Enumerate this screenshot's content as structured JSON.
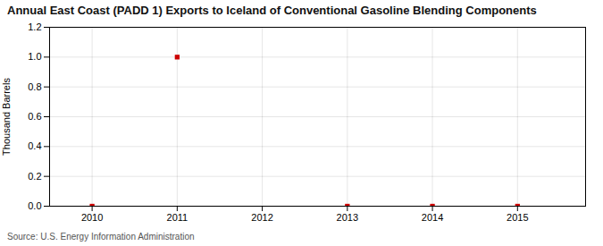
{
  "chart_data": {
    "type": "scatter",
    "title": "Annual East Coast (PADD 1) Exports to Iceland of Conventional Gasoline Blending Components",
    "ylabel": "Thousand Barrels",
    "source": "Source: U.S. Energy Information Administration",
    "x": [
      2010,
      2011,
      2013,
      2014,
      2015
    ],
    "values": [
      0,
      1.0,
      0,
      0,
      0
    ],
    "color": "#cc0000",
    "marker": "square",
    "xlim": [
      2009.5,
      2015.8
    ],
    "ylim": [
      0.0,
      1.2
    ],
    "xticks": [
      2010,
      2011,
      2012,
      2013,
      2014,
      2015
    ],
    "yticks": [
      {
        "value": 0.0,
        "label": "0.0"
      },
      {
        "value": 0.2,
        "label": "0.2"
      },
      {
        "value": 0.4,
        "label": "0.4"
      },
      {
        "value": 0.6,
        "label": "0.6"
      },
      {
        "value": 0.8,
        "label": "0.8"
      },
      {
        "value": 1.0,
        "label": "1.0"
      },
      {
        "value": 1.2,
        "label": "1.2"
      }
    ],
    "grid": true
  }
}
